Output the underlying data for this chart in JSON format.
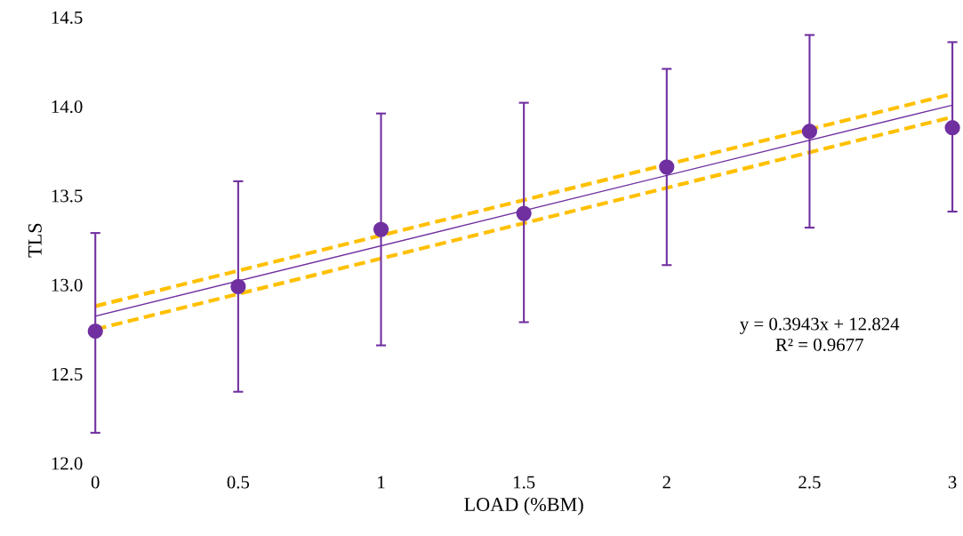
{
  "chart_data": {
    "type": "scatter",
    "xlabel": "LOAD (%BM)",
    "ylabel": "TLS",
    "xlim": [
      0,
      3
    ],
    "xticks": [
      0,
      0.5,
      1,
      1.5,
      2,
      2.5,
      3
    ],
    "ylim": [
      12.0,
      14.5
    ],
    "yticks": [
      {
        "value": 12.0,
        "label": "12.0"
      },
      {
        "value": 12.5,
        "label": "12.5"
      },
      {
        "value": 13.0,
        "label": "13.0"
      },
      {
        "value": 13.5,
        "label": "13.5"
      },
      {
        "value": 14.0,
        "label": "14.0"
      },
      {
        "value": 14.5,
        "label": "14.5"
      }
    ],
    "grid": false,
    "legend": false,
    "series": [
      {
        "type": "line",
        "color": "#ffc000",
        "line_style": "dashed",
        "marker": "none",
        "x": [
          0,
          3
        ],
        "values": [
          12.88,
          14.07
        ]
      },
      {
        "type": "line",
        "color": "#ffc000",
        "line_style": "dashed",
        "marker": "none",
        "x": [
          0,
          3
        ],
        "values": [
          12.75,
          13.94
        ]
      },
      {
        "type": "line",
        "color": "#7030a0",
        "line_style": "solid",
        "marker": "none",
        "x": [
          0,
          3
        ],
        "values": [
          12.824,
          14.007
        ]
      },
      {
        "color": "#7030a0",
        "marker": "circle",
        "x": [
          0,
          0.5,
          1,
          1.5,
          2,
          2.5,
          3
        ],
        "values": [
          12.74,
          12.99,
          13.31,
          13.4,
          13.66,
          13.86,
          13.88
        ],
        "errors": [
          [
            12.17,
            13.29
          ],
          [
            12.4,
            13.58
          ],
          [
            12.66,
            13.96
          ],
          [
            12.79,
            14.02
          ],
          [
            13.11,
            14.21
          ],
          [
            13.32,
            14.4
          ],
          [
            13.41,
            14.36
          ]
        ]
      }
    ],
    "annotations": [
      "y = 0.3943x + 12.824\nR² = 0.9677"
    ]
  }
}
